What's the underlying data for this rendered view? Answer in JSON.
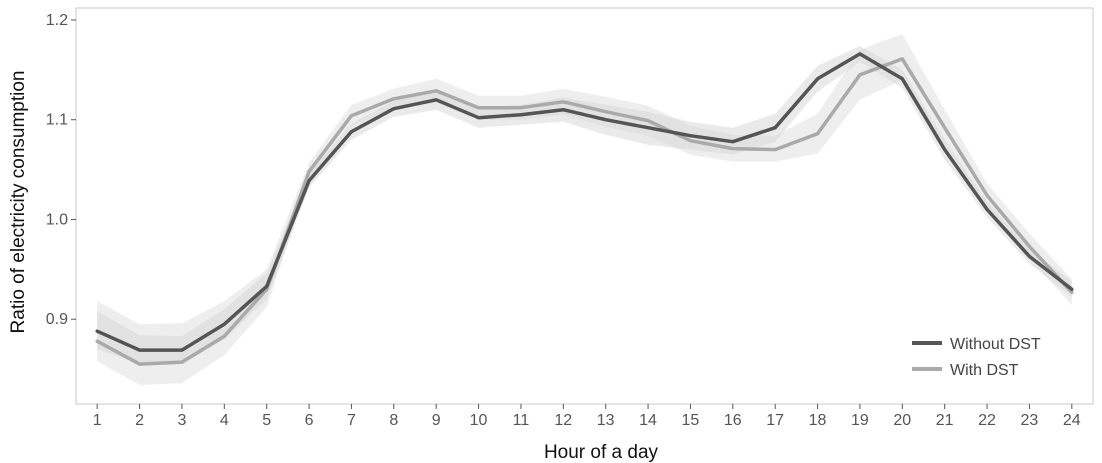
{
  "chart_data": {
    "type": "line",
    "xlabel": "Hour of a day",
    "ylabel": "Ratio of electricity consumption",
    "x": [
      1,
      2,
      3,
      4,
      5,
      6,
      7,
      8,
      9,
      10,
      11,
      12,
      13,
      14,
      15,
      16,
      17,
      18,
      19,
      20,
      21,
      22,
      23,
      24
    ],
    "xlim": [
      0.5,
      24.5
    ],
    "ylim": [
      0.815,
      1.212
    ],
    "yticks": [
      0.9,
      1.0,
      1.1,
      1.2
    ],
    "ytick_labels": [
      "0.9",
      "1.0",
      "1.1",
      "1.2"
    ],
    "grid": false,
    "legend_position": "bottom-right",
    "series": [
      {
        "name": "Without DST",
        "color": "#555555",
        "values": [
          0.888,
          0.869,
          0.869,
          0.895,
          0.933,
          1.039,
          1.088,
          1.111,
          1.12,
          1.102,
          1.105,
          1.11,
          1.1,
          1.092,
          1.084,
          1.078,
          1.092,
          1.141,
          1.166,
          1.141,
          1.07,
          1.01,
          0.963,
          0.93
        ],
        "ci_lower": [
          0.87,
          0.855,
          0.855,
          0.88,
          0.92,
          1.032,
          1.08,
          1.103,
          1.11,
          1.092,
          1.095,
          1.098,
          1.085,
          1.075,
          1.07,
          1.065,
          1.078,
          1.128,
          1.158,
          1.132,
          1.06,
          1.002,
          0.956,
          0.922
        ],
        "ci_upper": [
          0.908,
          0.884,
          0.883,
          0.91,
          0.946,
          1.046,
          1.096,
          1.119,
          1.13,
          1.112,
          1.115,
          1.122,
          1.115,
          1.108,
          1.098,
          1.092,
          1.106,
          1.154,
          1.174,
          1.15,
          1.08,
          1.018,
          0.97,
          0.938
        ]
      },
      {
        "name": "With DST",
        "color": "#aaaaaa",
        "values": [
          0.878,
          0.855,
          0.857,
          0.883,
          0.93,
          1.048,
          1.104,
          1.121,
          1.129,
          1.112,
          1.112,
          1.118,
          1.108,
          1.099,
          1.079,
          1.071,
          1.07,
          1.086,
          1.145,
          1.161,
          1.092,
          1.024,
          0.973,
          0.927
        ],
        "ci_lower": [
          0.858,
          0.834,
          0.836,
          0.864,
          0.912,
          1.04,
          1.094,
          1.111,
          1.117,
          1.1,
          1.1,
          1.105,
          1.093,
          1.084,
          1.065,
          1.058,
          1.058,
          1.066,
          1.12,
          1.14,
          1.075,
          1.012,
          0.961,
          0.914
        ],
        "ci_upper": [
          0.918,
          0.895,
          0.896,
          0.918,
          0.95,
          1.057,
          1.115,
          1.131,
          1.141,
          1.124,
          1.124,
          1.131,
          1.123,
          1.114,
          1.094,
          1.085,
          1.084,
          1.106,
          1.17,
          1.186,
          1.11,
          1.036,
          0.986,
          0.94
        ]
      }
    ]
  }
}
